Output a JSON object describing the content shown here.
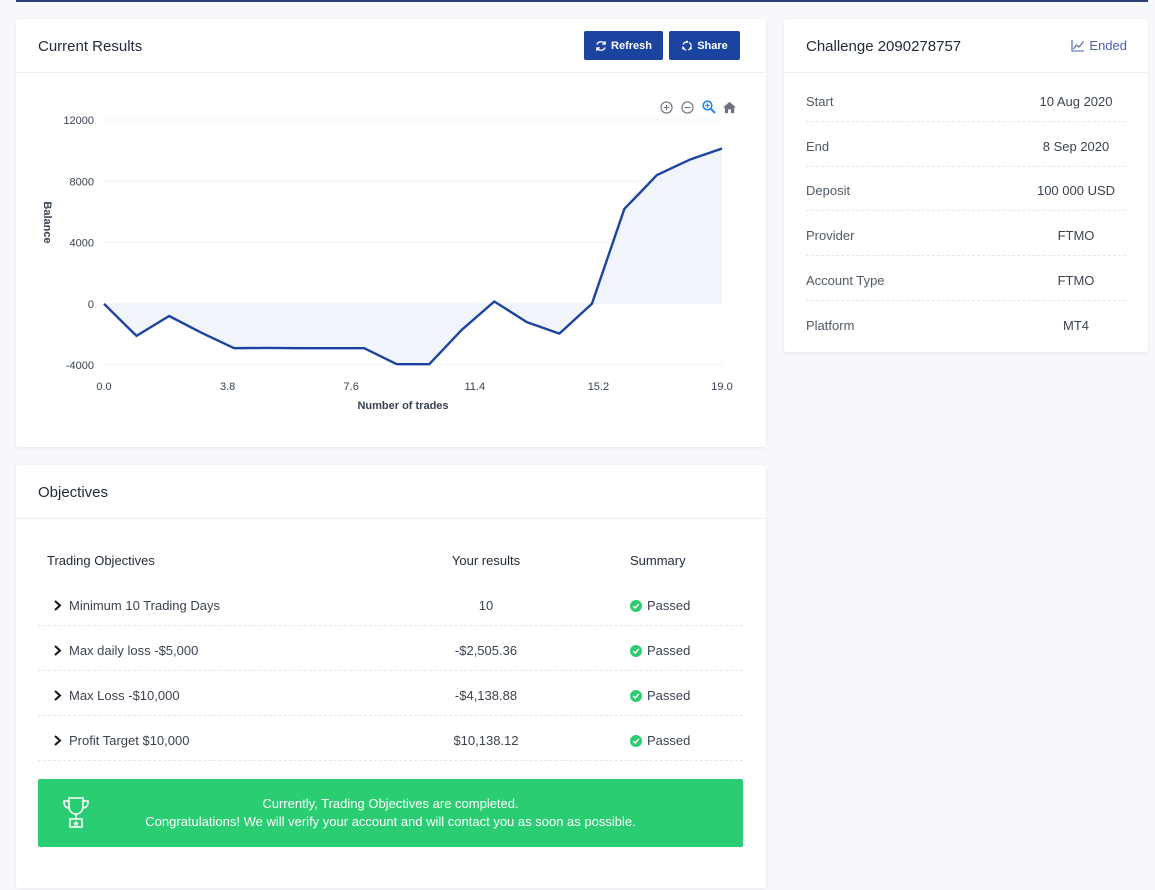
{
  "results": {
    "title": "Current Results",
    "refresh_label": "Refresh",
    "share_label": "Share"
  },
  "chart_data": {
    "type": "area",
    "title": "",
    "xlabel": "Number of trades",
    "ylabel": "Balance",
    "x": [
      0,
      1,
      2,
      3,
      4,
      5,
      6,
      7,
      8,
      9,
      10,
      11,
      12,
      13,
      14,
      15,
      16,
      16.5,
      17,
      18,
      19
    ],
    "y": [
      0,
      -2100,
      -800,
      -1900,
      -2900,
      -2880,
      -2900,
      -2900,
      -2900,
      -3950,
      -3950,
      -1700,
      150,
      -1200,
      -1950,
      0,
      6200,
      7300,
      8400,
      9400,
      10138
    ],
    "xlim": [
      0,
      19
    ],
    "ylim": [
      -4000,
      12000
    ],
    "xticks": [
      "0.0",
      "3.8",
      "7.6",
      "11.4",
      "15.2",
      "19.0"
    ],
    "yticks": [
      "12000",
      "8000",
      "4000",
      "0",
      "-4000"
    ],
    "color": "#1b44a0",
    "grid": true
  },
  "challenge": {
    "title": "Challenge 2090278757",
    "status": "Ended",
    "rows": [
      {
        "key": "Start",
        "value": "10 Aug 2020"
      },
      {
        "key": "End",
        "value": "8 Sep 2020"
      },
      {
        "key": "Deposit",
        "value": "100 000 USD"
      },
      {
        "key": "Provider",
        "value": "FTMO"
      },
      {
        "key": "Account Type",
        "value": "FTMO"
      },
      {
        "key": "Platform",
        "value": "MT4"
      }
    ]
  },
  "objectives": {
    "title": "Objectives",
    "headers": {
      "objective": "Trading Objectives",
      "result": "Your results",
      "summary": "Summary"
    },
    "rows": [
      {
        "name": "Minimum 10 Trading Days",
        "result": "10",
        "summary": "Passed"
      },
      {
        "name": "Max daily loss -$5,000",
        "result": "-$2,505.36",
        "summary": "Passed"
      },
      {
        "name": "Max Loss -$10,000",
        "result": "-$4,138.88",
        "summary": "Passed"
      },
      {
        "name": "Profit Target $10,000",
        "result": "$10,138.12",
        "summary": "Passed"
      }
    ],
    "success_line1": "Currently, Trading Objectives are completed.",
    "success_line2": "Congratulations! We will verify your account and will contact you as soon as possible."
  },
  "colors": {
    "accent": "#1b44a0",
    "success": "#2bcd72"
  }
}
